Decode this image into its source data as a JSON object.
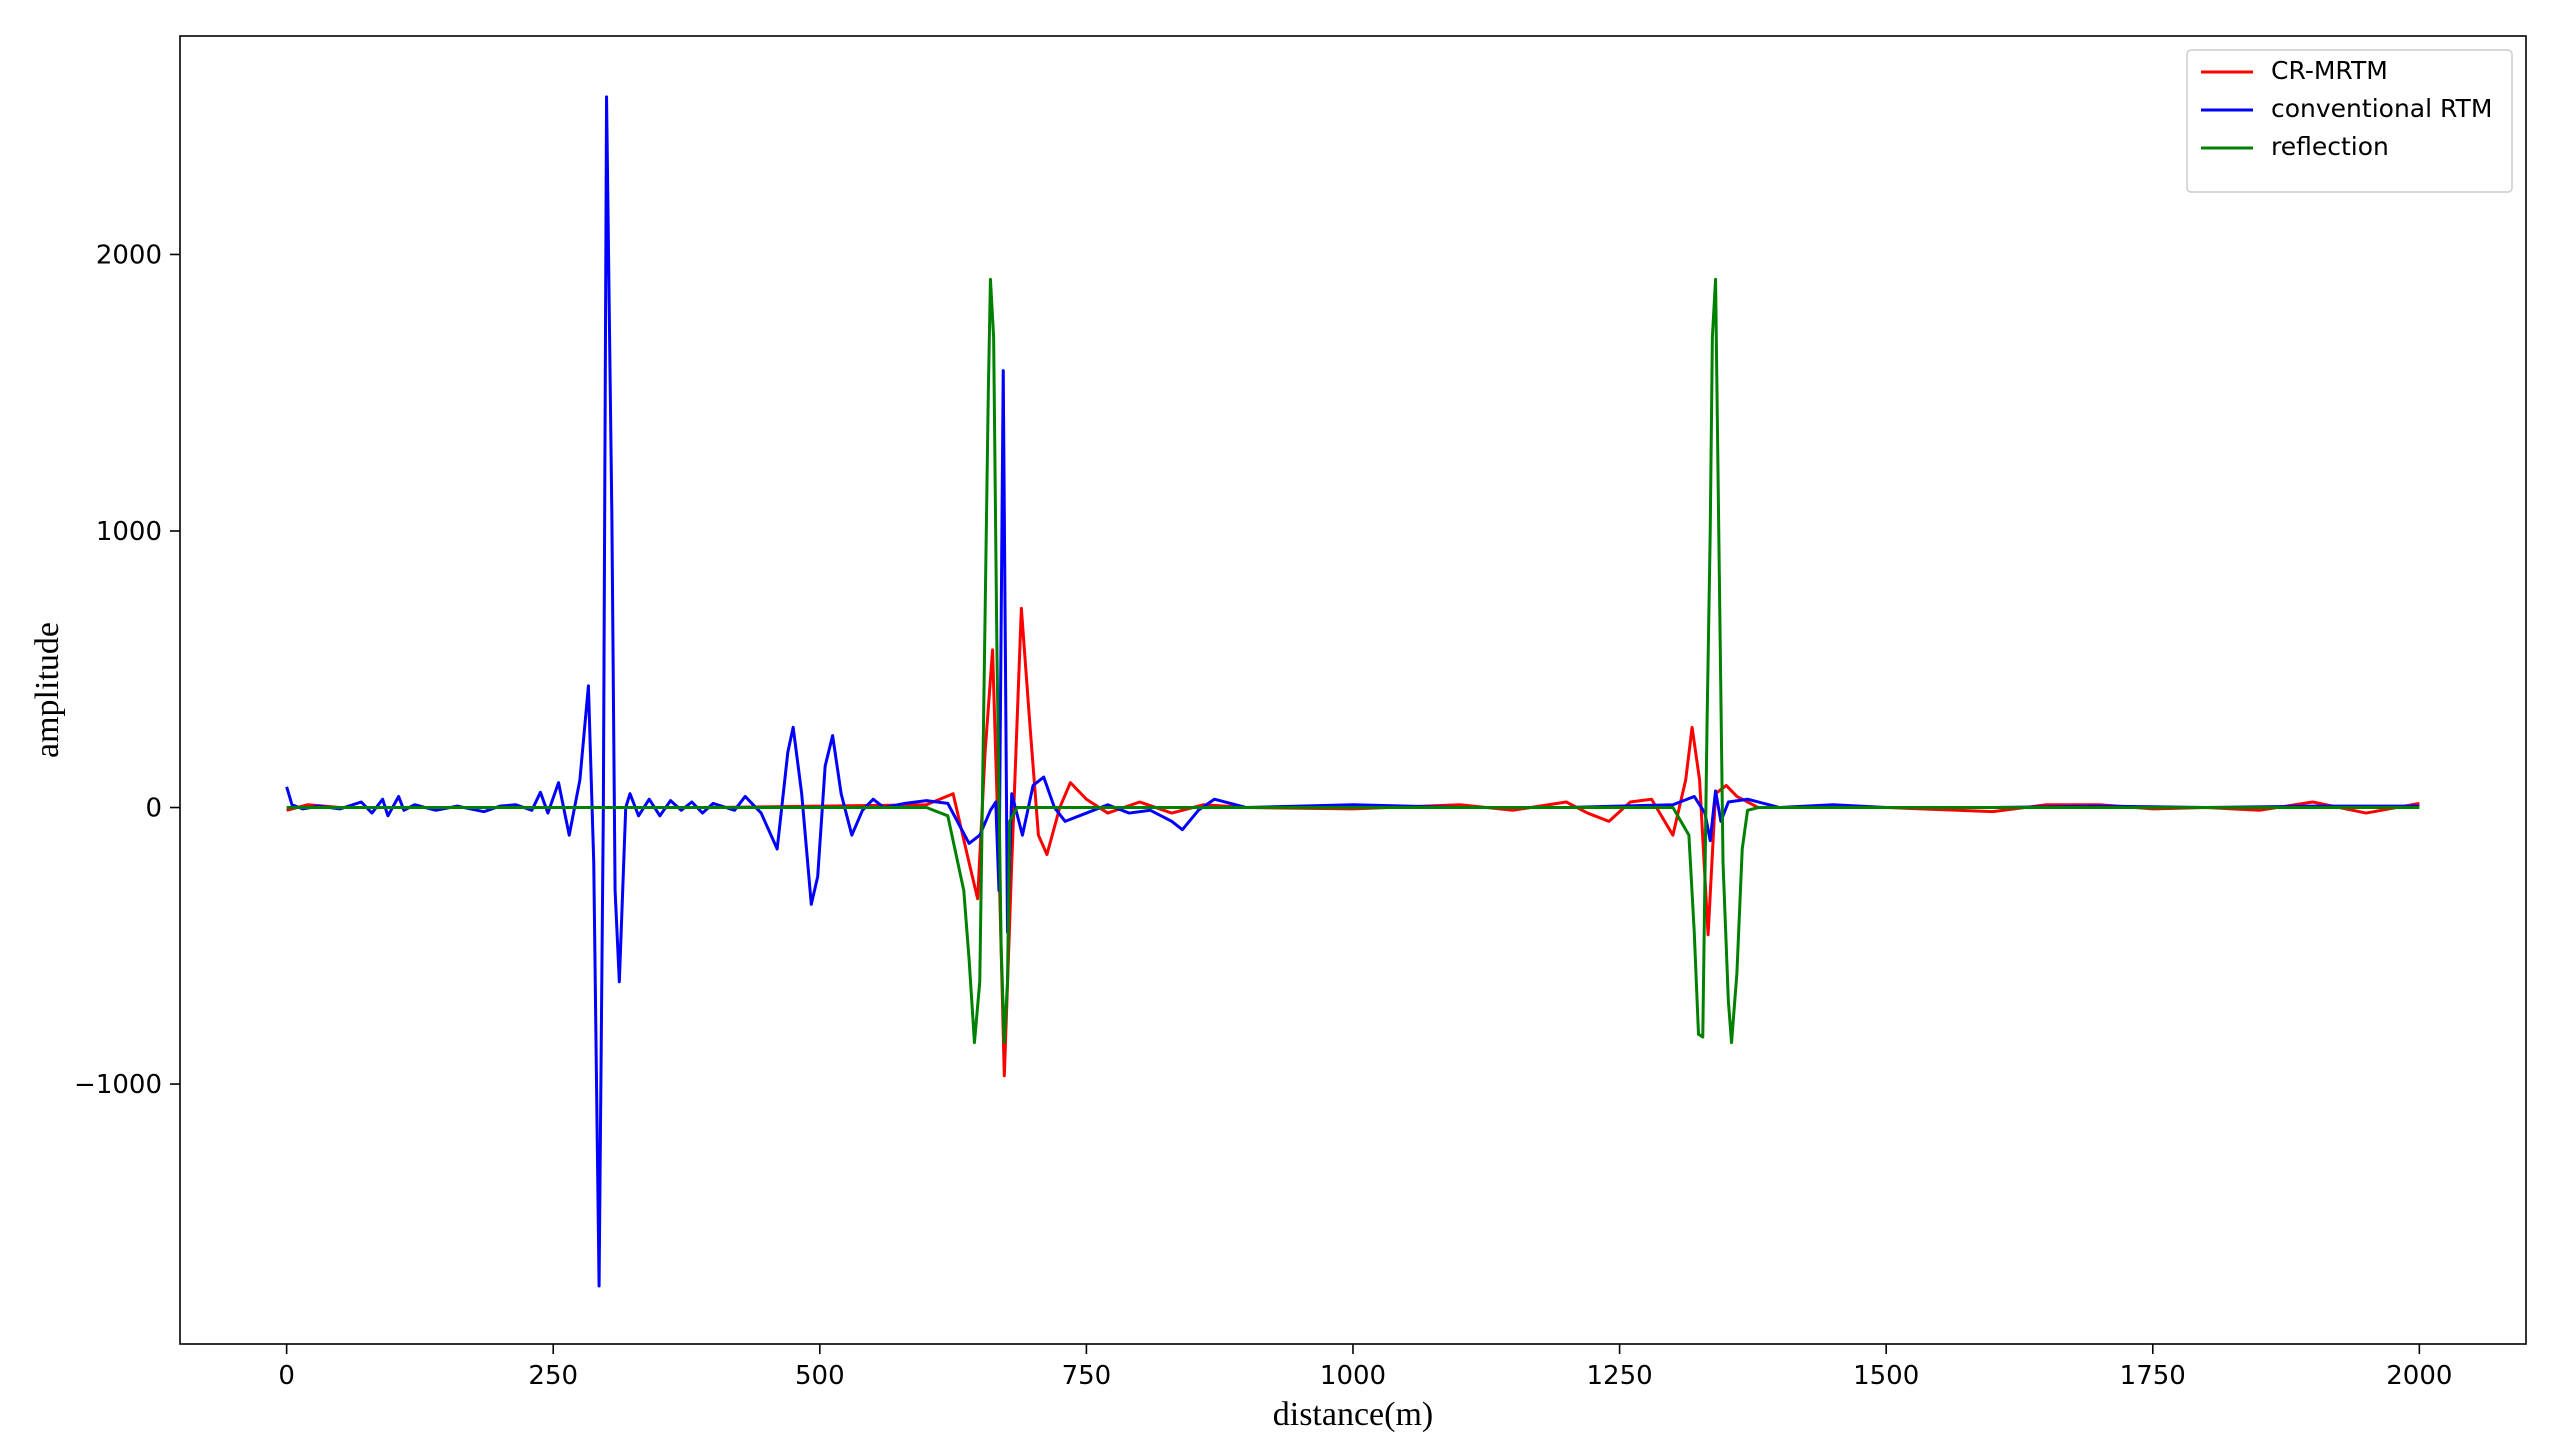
{
  "chart_data": {
    "type": "line",
    "xlabel": "distance(m)",
    "ylabel": "amplitude",
    "xlim": [
      -100,
      2100
    ],
    "ylim": [
      -1940,
      2790
    ],
    "xticks": [
      0,
      250,
      500,
      750,
      1000,
      1250,
      1500,
      1750,
      2000
    ],
    "yticks": [
      {
        "value": -1000,
        "label": "−1000"
      },
      0,
      1000,
      2000
    ],
    "legend": "upper right",
    "series": [
      {
        "name": "CR-MRTM",
        "color": "#ff0000",
        "x": [
          0,
          20,
          50,
          400,
          600,
          625,
          640,
          648,
          655,
          662,
          668,
          673,
          680,
          689,
          697,
          705,
          713,
          725,
          735,
          750,
          770,
          800,
          830,
          860,
          900,
          1000,
          1100,
          1150,
          1200,
          1220,
          1240,
          1260,
          1280,
          1300,
          1312,
          1318,
          1325,
          1333,
          1340,
          1350,
          1360,
          1380,
          1500,
          1600,
          1650,
          1700,
          1750,
          1800,
          1850,
          1900,
          1950,
          2000
        ],
        "values": [
          -10,
          10,
          0,
          0,
          10,
          50,
          -200,
          -330,
          200,
          570,
          -200,
          -970,
          -200,
          720,
          300,
          -100,
          -170,
          0,
          90,
          30,
          -20,
          20,
          -20,
          10,
          0,
          -5,
          10,
          -10,
          20,
          -20,
          -50,
          20,
          30,
          -100,
          100,
          290,
          100,
          -460,
          50,
          80,
          40,
          0,
          0,
          -15,
          10,
          10,
          -5,
          0,
          -10,
          20,
          -20,
          15
        ]
      },
      {
        "name": "conventional RTM",
        "color": "#0000ff",
        "x": [
          0,
          5,
          15,
          30,
          50,
          70,
          80,
          90,
          95,
          105,
          110,
          120,
          140,
          160,
          185,
          200,
          215,
          230,
          238,
          245,
          255,
          265,
          275,
          283,
          288,
          293,
          297,
          300,
          305,
          308,
          312,
          318,
          322,
          330,
          340,
          350,
          360,
          370,
          380,
          390,
          400,
          420,
          430,
          445,
          460,
          470,
          475,
          483,
          492,
          498,
          505,
          512,
          520,
          530,
          540,
          550,
          560,
          580,
          600,
          620,
          640,
          650,
          660,
          665,
          668,
          672,
          676,
          680,
          690,
          700,
          710,
          720,
          730,
          750,
          770,
          790,
          810,
          830,
          840,
          855,
          870,
          900,
          1000,
          1100,
          1200,
          1300,
          1320,
          1330,
          1335,
          1340,
          1345,
          1352,
          1370,
          1400,
          1450,
          1500,
          1600,
          1700,
          1800,
          1900,
          2000
        ],
        "values": [
          75,
          10,
          -5,
          5,
          -5,
          20,
          -20,
          30,
          -30,
          40,
          -10,
          10,
          -10,
          5,
          -15,
          5,
          10,
          -10,
          55,
          -20,
          90,
          -100,
          100,
          440,
          -200,
          -1730,
          0,
          2570,
          1050,
          -300,
          -630,
          0,
          50,
          -30,
          30,
          -30,
          25,
          -10,
          20,
          -20,
          15,
          -10,
          40,
          -20,
          -150,
          200,
          290,
          50,
          -350,
          -250,
          150,
          260,
          50,
          -100,
          -10,
          30,
          0,
          15,
          25,
          15,
          -130,
          -100,
          -10,
          20,
          -300,
          1580,
          -450,
          50,
          -100,
          80,
          110,
          0,
          -50,
          -20,
          10,
          -20,
          -10,
          -50,
          -80,
          -10,
          30,
          0,
          10,
          0,
          0,
          10,
          40,
          -20,
          -120,
          60,
          -50,
          20,
          30,
          0,
          10,
          0,
          0,
          5,
          0,
          5,
          5
        ]
      },
      {
        "name": "reflection",
        "color": "#008000",
        "x": [
          0,
          600,
          620,
          635,
          640,
          645,
          650,
          652,
          655,
          658,
          660,
          663,
          666,
          670,
          673,
          676,
          678,
          685,
          1300,
          1315,
          1320,
          1324,
          1328,
          1332,
          1335,
          1337,
          1340,
          1343,
          1347,
          1352,
          1355,
          1360,
          1365,
          1370,
          1380,
          2000
        ],
        "values": [
          0,
          0,
          -30,
          -300,
          -550,
          -850,
          -630,
          -100,
          700,
          1500,
          1910,
          1700,
          600,
          -500,
          -850,
          -630,
          -50,
          0,
          0,
          -100,
          -450,
          -820,
          -830,
          300,
          1000,
          1700,
          1910,
          1000,
          -200,
          -700,
          -850,
          -600,
          -150,
          -10,
          0,
          0
        ]
      }
    ]
  }
}
